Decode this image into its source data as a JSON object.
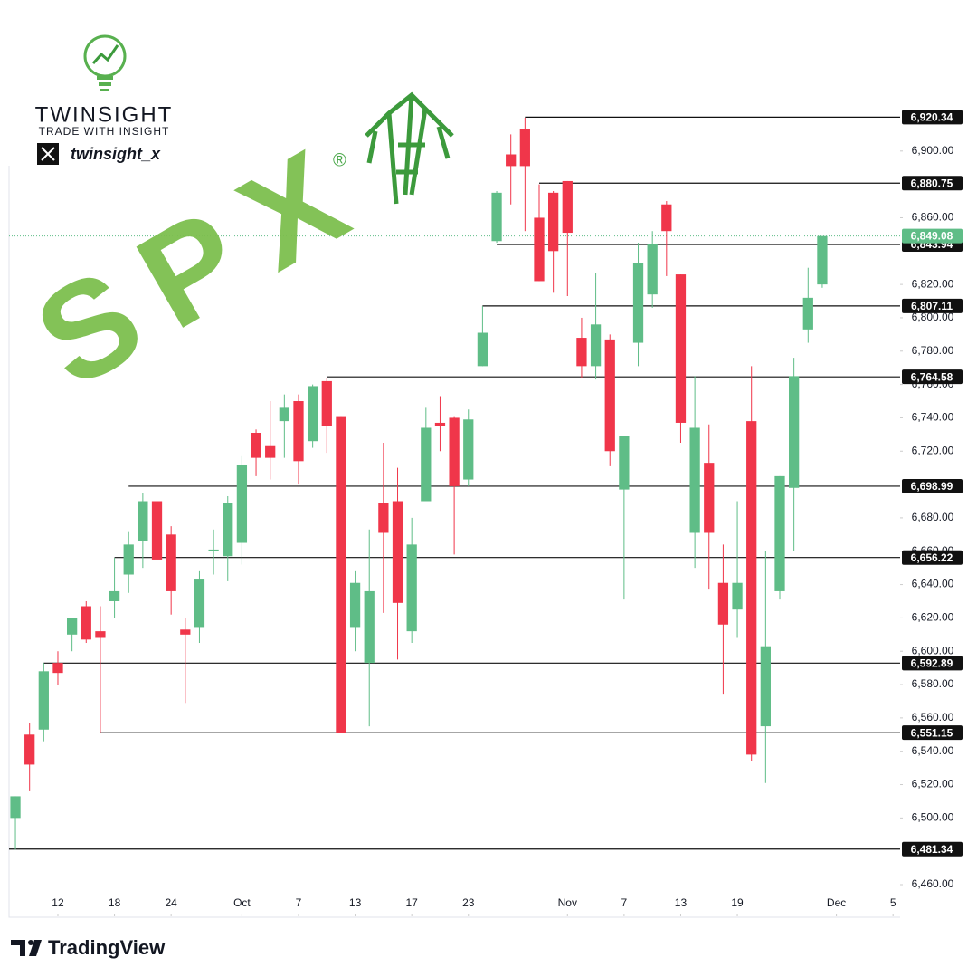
{
  "chart_data": {
    "type": "candlestick",
    "symbol": "SPX",
    "registered": "®",
    "open": [
      6500,
      6550,
      6553,
      6593,
      6610,
      6627,
      6612,
      6630,
      6646,
      6666,
      6690,
      6670,
      6613,
      6614,
      6660,
      6657,
      6665,
      6731,
      6723,
      6738,
      6750,
      6726,
      6762,
      6741,
      6614,
      6593,
      6689,
      6690,
      6612,
      6690,
      6737,
      6740,
      6703,
      6771,
      6846,
      6898,
      6913,
      6860,
      6875,
      6882,
      6788,
      6771,
      6787,
      6697,
      6785,
      6814,
      6868,
      6826,
      6671,
      6713,
      6641,
      6625,
      6738,
      6555,
      6636,
      6698,
      6793,
      6820
    ],
    "high": [
      6513,
      6557,
      6593,
      6600,
      6620,
      6630,
      6627,
      6656,
      6672,
      6695,
      6698,
      6675,
      6620,
      6648,
      6673,
      6693,
      6717,
      6733,
      6750,
      6754,
      6754,
      6760,
      6764,
      6741,
      6648,
      6673,
      6725,
      6710,
      6680,
      6746,
      6753,
      6741,
      6745,
      6807,
      6876,
      6910,
      6920,
      6880,
      6876,
      6882,
      6800,
      6827,
      6790,
      6728,
      6845,
      6852,
      6870,
      6826,
      6765,
      6736,
      6664,
      6690,
      6771,
      6660,
      6705,
      6776,
      6830,
      6849
    ],
    "low": [
      6481,
      6516,
      6546,
      6580,
      6600,
      6605,
      6551,
      6620,
      6635,
      6650,
      6646,
      6622,
      6569,
      6605,
      6646,
      6642,
      6652,
      6705,
      6703,
      6716,
      6700,
      6722,
      6719,
      6551,
      6600,
      6555,
      6623,
      6595,
      6605,
      6690,
      6720,
      6658,
      6699,
      6771,
      6845,
      6868,
      6852,
      6822,
      6815,
      6813,
      6764,
      6763,
      6711,
      6631,
      6771,
      6806,
      6825,
      6725,
      6650,
      6637,
      6574,
      6608,
      6534,
      6521,
      6631,
      6660,
      6785,
      6818
    ],
    "close": [
      6513,
      6532,
      6588,
      6587,
      6620,
      6607,
      6608,
      6636,
      6664,
      6690,
      6655,
      6636,
      6610,
      6643,
      6661,
      6689,
      6712,
      6716,
      6716,
      6746,
      6714,
      6759,
      6735,
      6551,
      6641,
      6636,
      6671,
      6629,
      6664,
      6734,
      6735,
      6699,
      6739,
      6791,
      6875,
      6891,
      6891,
      6822,
      6840,
      6851,
      6771,
      6796,
      6720,
      6729,
      6833,
      6844,
      6852,
      6737,
      6734,
      6671,
      6616,
      6641,
      6538,
      6603,
      6705,
      6765,
      6812,
      6849
    ],
    "up_color": "#5fbd87",
    "down_color": "#f0364a",
    "xlim": [
      -0.45,
      62.5
    ],
    "xticks": [
      {
        "value": 3,
        "label": "12"
      },
      {
        "value": 7,
        "label": "18"
      },
      {
        "value": 11,
        "label": "24"
      },
      {
        "value": 16,
        "label": "Oct"
      },
      {
        "value": 20,
        "label": "7"
      },
      {
        "value": 24,
        "label": "13"
      },
      {
        "value": 28,
        "label": "17"
      },
      {
        "value": 32,
        "label": "23"
      },
      {
        "value": 39,
        "label": "Nov"
      },
      {
        "value": 43,
        "label": "7"
      },
      {
        "value": 47,
        "label": "13"
      },
      {
        "value": 51,
        "label": "19"
      },
      {
        "value": 58,
        "label": "Dec"
      },
      {
        "value": 62,
        "label": "5"
      }
    ],
    "ylim": [
      6441,
      6939
    ],
    "yticks": [
      {
        "value": 6460,
        "label": "6,460.00"
      },
      {
        "value": 6500,
        "label": "6,500.00"
      },
      {
        "value": 6520,
        "label": "6,520.00"
      },
      {
        "value": 6540,
        "label": "6,540.00"
      },
      {
        "value": 6560,
        "label": "6,560.00"
      },
      {
        "value": 6580,
        "label": "6,580.00"
      },
      {
        "value": 6600,
        "label": "6,600.00"
      },
      {
        "value": 6620,
        "label": "6,620.00"
      },
      {
        "value": 6640,
        "label": "6,640.00"
      },
      {
        "value": 6660,
        "label": "6,660.00"
      },
      {
        "value": 6680,
        "label": "6,680.00"
      },
      {
        "value": 6720,
        "label": "6,720.00"
      },
      {
        "value": 6740,
        "label": "6,740.00"
      },
      {
        "value": 6760,
        "label": "6,760.00"
      },
      {
        "value": 6780,
        "label": "6,780.00"
      },
      {
        "value": 6800,
        "label": "6,800.00"
      },
      {
        "value": 6820,
        "label": "6,820.00"
      },
      {
        "value": 6860,
        "label": "6,860.00"
      },
      {
        "value": 6900,
        "label": "6,900.00"
      }
    ],
    "levels": [
      {
        "value": 6920.34,
        "label": "6,920.34",
        "from": 36
      },
      {
        "value": 6880.75,
        "label": "6,880.75",
        "from": 37
      },
      {
        "value": 6843.94,
        "label": "6,843.94",
        "from": 34
      },
      {
        "value": 6807.11,
        "label": "6,807.11",
        "from": 33
      },
      {
        "value": 6764.58,
        "label": "6,764.58",
        "from": 22
      },
      {
        "value": 6698.99,
        "label": "6,698.99",
        "from": 8
      },
      {
        "value": 6656.22,
        "label": "6,656.22",
        "from": 7
      },
      {
        "value": 6592.89,
        "label": "6,592.89",
        "from": 2
      },
      {
        "value": 6551.15,
        "label": "6,551.15",
        "from": 6
      },
      {
        "value": 6481.34,
        "label": "6,481.34",
        "from": -0.45
      }
    ],
    "last_price": {
      "value": 6849.08,
      "label": "6,849.08"
    }
  },
  "branding": {
    "name": "TWINSIGHT",
    "tagline": "TRADE WITH INSIGHT",
    "handle": "twinsight_x",
    "footer": "TradingView"
  }
}
